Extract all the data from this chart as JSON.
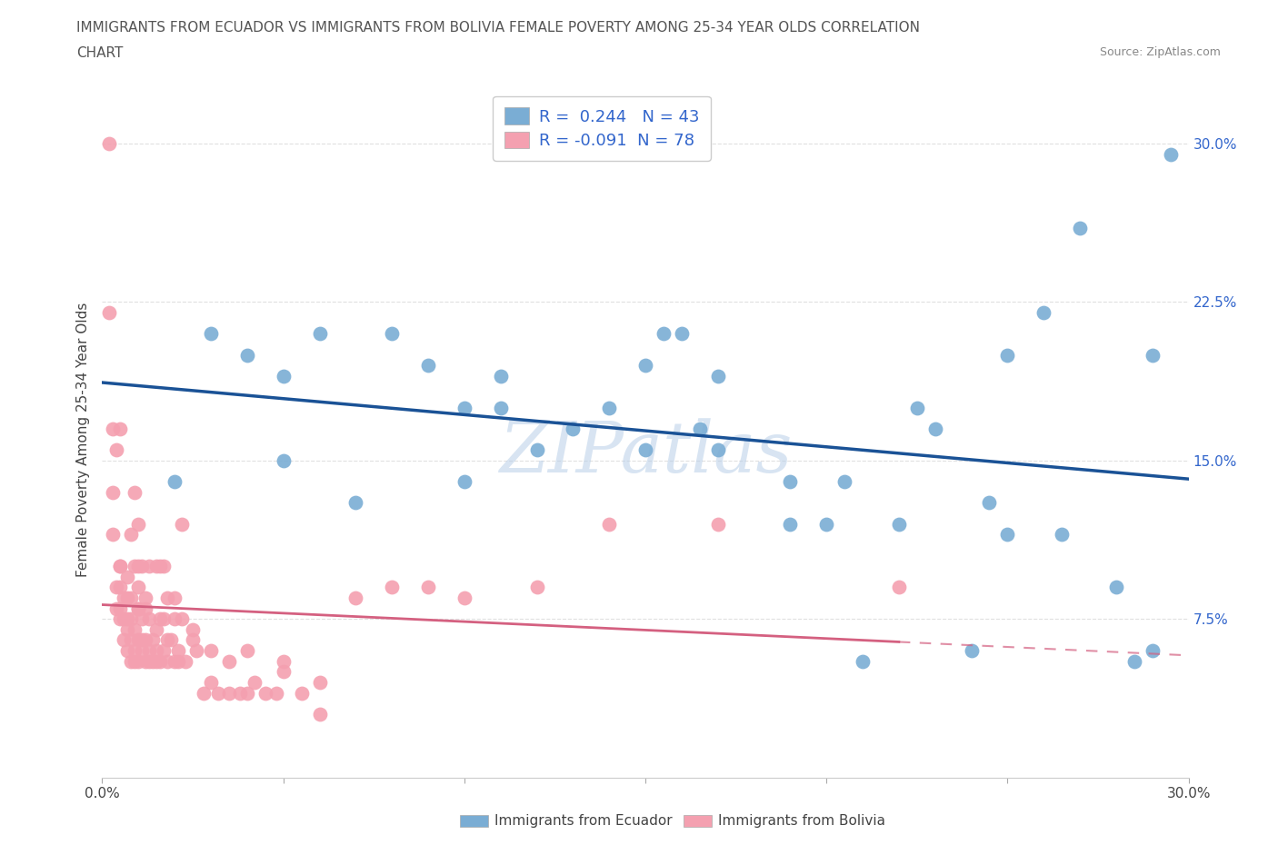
{
  "title_line1": "IMMIGRANTS FROM ECUADOR VS IMMIGRANTS FROM BOLIVIA FEMALE POVERTY AMONG 25-34 YEAR OLDS CORRELATION",
  "title_line2": "CHART",
  "source": "Source: ZipAtlas.com",
  "ylabel": "Female Poverty Among 25-34 Year Olds",
  "xlim": [
    0.0,
    0.3
  ],
  "ylim": [
    0.0,
    0.32
  ],
  "r_ecuador": 0.244,
  "n_ecuador": 43,
  "r_bolivia": -0.091,
  "n_bolivia": 78,
  "color_ecuador": "#7aadd4",
  "color_bolivia": "#f4a0b0",
  "trend_color_ecuador": "#1a5296",
  "trend_color_bolivia": "#d46080",
  "background_color": "#ffffff",
  "grid_color": "#cccccc",
  "ecuador_x": [
    0.02,
    0.03,
    0.04,
    0.05,
    0.05,
    0.06,
    0.07,
    0.08,
    0.09,
    0.1,
    0.1,
    0.11,
    0.11,
    0.12,
    0.13,
    0.14,
    0.15,
    0.15,
    0.155,
    0.16,
    0.165,
    0.17,
    0.17,
    0.19,
    0.19,
    0.2,
    0.205,
    0.21,
    0.22,
    0.225,
    0.23,
    0.24,
    0.245,
    0.25,
    0.25,
    0.26,
    0.265,
    0.27,
    0.28,
    0.285,
    0.29,
    0.29,
    0.295
  ],
  "ecuador_y": [
    0.14,
    0.21,
    0.2,
    0.15,
    0.19,
    0.21,
    0.13,
    0.21,
    0.195,
    0.14,
    0.175,
    0.175,
    0.19,
    0.155,
    0.165,
    0.175,
    0.155,
    0.195,
    0.21,
    0.21,
    0.165,
    0.155,
    0.19,
    0.12,
    0.14,
    0.12,
    0.14,
    0.055,
    0.12,
    0.175,
    0.165,
    0.06,
    0.13,
    0.115,
    0.2,
    0.22,
    0.115,
    0.26,
    0.09,
    0.055,
    0.06,
    0.2,
    0.295
  ],
  "bolivia_x": [
    0.002,
    0.003,
    0.003,
    0.004,
    0.004,
    0.005,
    0.005,
    0.005,
    0.005,
    0.006,
    0.006,
    0.006,
    0.007,
    0.007,
    0.007,
    0.007,
    0.008,
    0.008,
    0.008,
    0.008,
    0.009,
    0.009,
    0.009,
    0.009,
    0.01,
    0.01,
    0.01,
    0.01,
    0.01,
    0.011,
    0.011,
    0.011,
    0.012,
    0.012,
    0.012,
    0.013,
    0.013,
    0.013,
    0.014,
    0.014,
    0.015,
    0.015,
    0.015,
    0.016,
    0.016,
    0.017,
    0.017,
    0.018,
    0.018,
    0.019,
    0.02,
    0.02,
    0.021,
    0.021,
    0.022,
    0.023,
    0.025,
    0.026,
    0.028,
    0.03,
    0.032,
    0.035,
    0.038,
    0.04,
    0.042,
    0.045,
    0.048,
    0.05,
    0.055,
    0.06,
    0.07,
    0.08,
    0.09,
    0.1,
    0.12,
    0.14,
    0.17,
    0.22
  ],
  "bolivia_y": [
    0.3,
    0.115,
    0.135,
    0.08,
    0.09,
    0.075,
    0.08,
    0.09,
    0.1,
    0.065,
    0.075,
    0.085,
    0.06,
    0.07,
    0.075,
    0.085,
    0.055,
    0.065,
    0.075,
    0.085,
    0.055,
    0.06,
    0.07,
    0.1,
    0.055,
    0.065,
    0.08,
    0.09,
    0.1,
    0.06,
    0.065,
    0.075,
    0.055,
    0.065,
    0.08,
    0.055,
    0.06,
    0.075,
    0.055,
    0.065,
    0.055,
    0.06,
    0.07,
    0.055,
    0.075,
    0.06,
    0.075,
    0.055,
    0.065,
    0.065,
    0.055,
    0.075,
    0.055,
    0.06,
    0.075,
    0.055,
    0.065,
    0.06,
    0.04,
    0.045,
    0.04,
    0.04,
    0.04,
    0.04,
    0.045,
    0.04,
    0.04,
    0.055,
    0.04,
    0.03,
    0.085,
    0.09,
    0.09,
    0.085,
    0.09,
    0.12,
    0.12,
    0.09
  ],
  "bolivia_extra_x": [
    0.002,
    0.003,
    0.004,
    0.005,
    0.005,
    0.007,
    0.008,
    0.009,
    0.01,
    0.01,
    0.011,
    0.012,
    0.013,
    0.015,
    0.016,
    0.017,
    0.018,
    0.02,
    0.022,
    0.025,
    0.03,
    0.035,
    0.04,
    0.05,
    0.06
  ],
  "bolivia_extra_y": [
    0.22,
    0.165,
    0.155,
    0.165,
    0.1,
    0.095,
    0.115,
    0.135,
    0.12,
    0.08,
    0.1,
    0.085,
    0.1,
    0.1,
    0.1,
    0.1,
    0.085,
    0.085,
    0.12,
    0.07,
    0.06,
    0.055,
    0.06,
    0.05,
    0.045
  ]
}
